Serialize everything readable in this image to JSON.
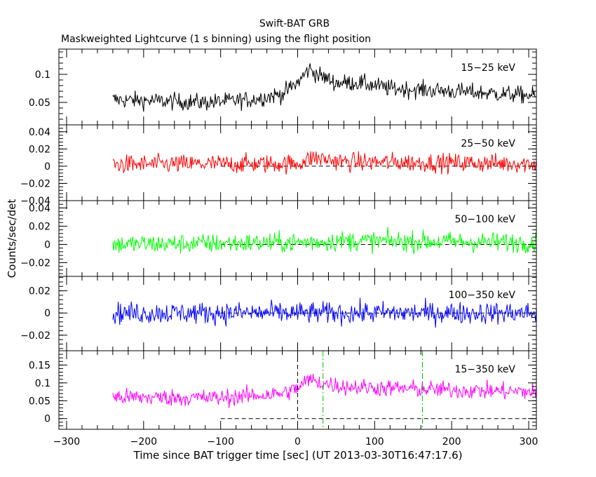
{
  "title": "Swift-BAT GRB",
  "subtitle": "Maskweighted Lightcurve (1 s binning) using the flight position",
  "xlabel": "Time since BAT trigger time [sec] (UT 2013-03-30T16:47:17.6)",
  "ylabel": "Counts/sec/det",
  "xlim": [
    -310,
    310
  ],
  "x_ticks": [
    "-300",
    "-200",
    "-100",
    "0",
    "100",
    "200",
    "300"
  ],
  "chart_data": {
    "type": "line",
    "x_range_data": [
      -240,
      310
    ],
    "trigger_line_x": 0,
    "t90_lines_x": [
      33,
      162
    ],
    "panels": [
      {
        "name": "15-25 keV",
        "label": "15−25 keV",
        "color": "#000000",
        "ylim": [
          0.01,
          0.145
        ],
        "ticks": [
          0.05,
          0.1
        ],
        "tick_labels": [
          "0.05",
          "0.1"
        ],
        "profile": [
          [
            -240,
            0.055
          ],
          [
            -120,
            0.05
          ],
          [
            -60,
            0.055
          ],
          [
            -20,
            0.065
          ],
          [
            0,
            0.085
          ],
          [
            15,
            0.11
          ],
          [
            25,
            0.1
          ],
          [
            50,
            0.085
          ],
          [
            80,
            0.085
          ],
          [
            120,
            0.075
          ],
          [
            200,
            0.07
          ],
          [
            310,
            0.062
          ]
        ],
        "noise": 0.014,
        "zero_line": false
      },
      {
        "name": "25-50 keV",
        "label": "25−50 keV",
        "color": "#ff0000",
        "ylim": [
          -0.04,
          0.048
        ],
        "ticks": [
          -0.04,
          -0.02,
          0,
          0.02,
          0.04
        ],
        "tick_labels": [
          "−0.04",
          "−0.02",
          "0",
          "0.02",
          "0.04"
        ],
        "profile": [
          [
            -240,
            0.002
          ],
          [
            0,
            0.003
          ],
          [
            20,
            0.01
          ],
          [
            60,
            0.005
          ],
          [
            310,
            0.003
          ]
        ],
        "noise": 0.01,
        "zero_line": true
      },
      {
        "name": "50-100 keV",
        "label": "50−100 keV",
        "color": "#00ff00",
        "ylim": [
          -0.035,
          0.048
        ],
        "ticks": [
          -0.02,
          0,
          0.02,
          0.04
        ],
        "tick_labels": [
          "−0.02",
          "0",
          "0.02",
          "0.04"
        ],
        "profile": [
          [
            -240,
            0.0
          ],
          [
            0,
            0.002
          ],
          [
            60,
            0.004
          ],
          [
            310,
            0.002
          ]
        ],
        "noise": 0.01,
        "zero_line": true
      },
      {
        "name": "100-350 keV",
        "label": "100−350 keV",
        "color": "#0000ff",
        "ylim": [
          -0.034,
          0.033
        ],
        "ticks": [
          -0.02,
          0,
          0.02
        ],
        "tick_labels": [
          "−0.02",
          "0",
          "0.02"
        ],
        "profile": [
          [
            -240,
            0.0
          ],
          [
            310,
            0.0
          ]
        ],
        "noise": 0.009,
        "zero_line": true
      },
      {
        "name": "15-350 keV",
        "label": "15−350 keV",
        "color": "#ff00ff",
        "ylim": [
          -0.03,
          0.19
        ],
        "ticks": [
          0,
          0.05,
          0.1,
          0.15
        ],
        "tick_labels": [
          "0",
          "0.05",
          "0.1",
          "0.15"
        ],
        "profile": [
          [
            -240,
            0.06
          ],
          [
            -100,
            0.058
          ],
          [
            -20,
            0.07
          ],
          [
            0,
            0.085
          ],
          [
            15,
            0.11
          ],
          [
            30,
            0.1
          ],
          [
            60,
            0.09
          ],
          [
            120,
            0.085
          ],
          [
            200,
            0.08
          ],
          [
            310,
            0.075
          ]
        ],
        "noise": 0.022,
        "zero_line": true,
        "show_markers": true
      }
    ]
  }
}
